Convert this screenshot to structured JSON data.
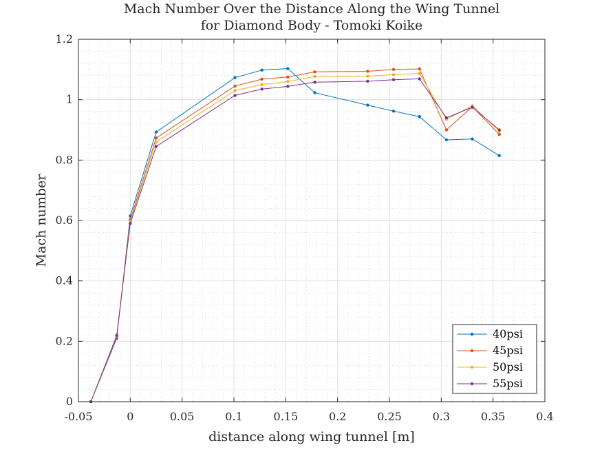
{
  "chart_data": {
    "type": "line",
    "title_line1": "Mach Number Over the Distance Along the Wing Tunnel",
    "title_line2": "for Diamond Body - Tomoki Koike",
    "xlabel": "distance along wing tunnel [m]",
    "ylabel": "Mach number",
    "xlim": [
      -0.05,
      0.4
    ],
    "ylim": [
      0,
      1.2
    ],
    "xticks": [
      -0.05,
      0,
      0.05,
      0.1,
      0.15,
      0.2,
      0.25,
      0.3,
      0.35,
      0.4
    ],
    "xtick_labels": [
      "-0.05",
      "0",
      "0.05",
      "0.1",
      "0.15",
      "0.2",
      "0.25",
      "0.3",
      "0.35",
      "0.4"
    ],
    "yticks": [
      0,
      0.2,
      0.4,
      0.6,
      0.8,
      1,
      1.2
    ],
    "ytick_labels": [
      "0",
      "0.2",
      "0.4",
      "0.6",
      "0.8",
      "1",
      "1.2"
    ],
    "grid": true,
    "minor_grid": true,
    "legend_position": "bottom-right",
    "x": [
      -0.038,
      -0.013,
      0,
      0.025,
      0.101,
      0.127,
      0.152,
      0.178,
      0.229,
      0.254,
      0.279,
      0.305,
      0.33,
      0.356
    ],
    "series": [
      {
        "name": "40psi",
        "color": "#0072BD",
        "values": [
          0,
          0.21,
          0.615,
          0.893,
          1.073,
          1.098,
          1.103,
          1.023,
          0.982,
          0.962,
          0.944,
          0.867,
          0.87,
          0.815
        ]
      },
      {
        "name": "45psi",
        "color": "#D95319",
        "values": [
          0,
          0.215,
          0.603,
          0.873,
          1.045,
          1.068,
          1.075,
          1.092,
          1.094,
          1.1,
          1.102,
          0.9,
          0.977,
          0.885
        ]
      },
      {
        "name": "50psi",
        "color": "#EDB120",
        "values": [
          0,
          0.218,
          0.597,
          0.86,
          1.03,
          1.05,
          1.06,
          1.077,
          1.078,
          1.083,
          1.087,
          0.935,
          0.98,
          0.895
        ]
      },
      {
        "name": "55psi",
        "color": "#7E2F8E",
        "values": [
          0,
          0.22,
          0.59,
          0.845,
          1.014,
          1.035,
          1.044,
          1.058,
          1.061,
          1.066,
          1.069,
          0.94,
          0.975,
          0.9
        ]
      }
    ]
  }
}
